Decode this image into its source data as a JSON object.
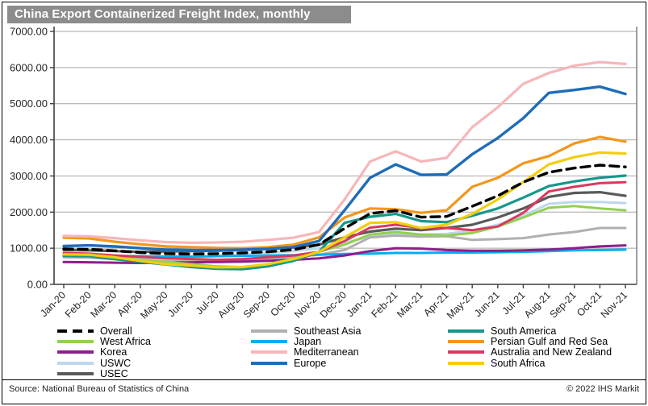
{
  "title": "China Export Containerized Freight Index, monthly",
  "footer": {
    "source": "Source: National Bureau of Statistics of China",
    "copyright": "© 2022 IHS Markit"
  },
  "colors": {
    "title_bar_bg": "#8c8c8c",
    "title_text": "#ffffff",
    "gridline": "#a6a6a6",
    "axis": "#3f3f3f",
    "tick_label": "#262626"
  },
  "chart_data": {
    "type": "line",
    "title": "China Export Containerized Freight Index, monthly",
    "xlabel": "",
    "ylabel": "",
    "ylim": [
      0,
      7000
    ],
    "y_tick_step": 1000,
    "y_tick_decimals": 2,
    "grid": true,
    "legend_position": "bottom",
    "x": [
      "Jan-20",
      "Feb-20",
      "Mar-20",
      "Apr-20",
      "May-20",
      "Jun-20",
      "Jul-20",
      "Aug-20",
      "Sep-20",
      "Oct-20",
      "Nov-20",
      "Dec-20",
      "Jan-21",
      "Feb-21",
      "Mar-21",
      "Apr-21",
      "May-21",
      "Jun-21",
      "Jul-21",
      "Aug-21",
      "Sep-21",
      "Oct-21",
      "Nov-21"
    ],
    "series": [
      {
        "name": "USWC",
        "color": "#bdd7ee",
        "width": 3,
        "dash": null,
        "values": [
          780,
          770,
          750,
          720,
          730,
          750,
          780,
          820,
          870,
          920,
          1000,
          1150,
          1320,
          1400,
          1380,
          1400,
          1490,
          1650,
          1900,
          2230,
          2280,
          2280,
          2250
        ]
      },
      {
        "name": "Southeast Asia",
        "color": "#b0b0b0",
        "width": 3,
        "dash": null,
        "values": [
          750,
          740,
          700,
          660,
          640,
          630,
          640,
          660,
          700,
          750,
          820,
          950,
          1300,
          1350,
          1320,
          1330,
          1230,
          1250,
          1280,
          1380,
          1450,
          1560,
          1560
        ]
      },
      {
        "name": "Japan",
        "color": "#00b0f0",
        "width": 3,
        "dash": null,
        "values": [
          800,
          800,
          790,
          780,
          770,
          770,
          780,
          790,
          800,
          810,
          820,
          840,
          850,
          870,
          870,
          880,
          880,
          890,
          900,
          920,
          940,
          950,
          960
        ]
      },
      {
        "name": "Korea",
        "color": "#8b1f8b",
        "width": 3,
        "dash": null,
        "values": [
          620,
          610,
          600,
          590,
          600,
          610,
          620,
          630,
          650,
          680,
          720,
          800,
          920,
          1000,
          990,
          950,
          930,
          930,
          940,
          960,
          1000,
          1050,
          1080
        ]
      },
      {
        "name": "West Africa",
        "color": "#92d050",
        "width": 3,
        "dash": null,
        "values": [
          800,
          790,
          740,
          680,
          620,
          560,
          500,
          480,
          550,
          700,
          900,
          1100,
          1380,
          1450,
          1380,
          1350,
          1420,
          1600,
          1850,
          2120,
          2170,
          2100,
          2050
        ]
      },
      {
        "name": "USEC",
        "color": "#595959",
        "width": 3.2,
        "dash": null,
        "values": [
          950,
          940,
          920,
          900,
          910,
          920,
          930,
          950,
          980,
          1020,
          1100,
          1300,
          1460,
          1540,
          1500,
          1560,
          1650,
          1850,
          2100,
          2420,
          2530,
          2550,
          2450
        ]
      },
      {
        "name": "Australia and New Zealand",
        "color": "#d9395f",
        "width": 3,
        "dash": null,
        "values": [
          870,
          850,
          800,
          760,
          720,
          700,
          680,
          700,
          750,
          800,
          900,
          1200,
          1570,
          1650,
          1560,
          1560,
          1500,
          1600,
          1980,
          2570,
          2700,
          2800,
          2830
        ]
      },
      {
        "name": "South America",
        "color": "#16978c",
        "width": 3.2,
        "dash": null,
        "values": [
          790,
          780,
          700,
          620,
          550,
          480,
          430,
          420,
          500,
          650,
          900,
          1700,
          1870,
          1950,
          1750,
          1720,
          1900,
          2100,
          2400,
          2720,
          2850,
          2950,
          3010
        ]
      },
      {
        "name": "South Africa",
        "color": "#f2ce0d",
        "width": 3.2,
        "dash": null,
        "values": [
          830,
          820,
          750,
          650,
          560,
          520,
          470,
          480,
          560,
          700,
          900,
          1300,
          1700,
          1720,
          1560,
          1650,
          1950,
          2350,
          2830,
          3320,
          3520,
          3650,
          3620
        ]
      },
      {
        "name": "Persian Gulf and Red Sea",
        "color": "#f2971b",
        "width": 3.2,
        "dash": null,
        "values": [
          1290,
          1270,
          1180,
          1110,
          1050,
          1030,
          1010,
          1000,
          1030,
          1100,
          1300,
          1850,
          2100,
          2080,
          1980,
          2050,
          2700,
          2950,
          3350,
          3550,
          3900,
          4080,
          3950
        ]
      },
      {
        "name": "Mediterranean",
        "color": "#f7b6b8",
        "width": 3.2,
        "dash": null,
        "values": [
          1340,
          1330,
          1280,
          1220,
          1170,
          1150,
          1160,
          1180,
          1230,
          1290,
          1450,
          2350,
          3400,
          3680,
          3400,
          3500,
          4350,
          4900,
          5550,
          5850,
          6050,
          6150,
          6100
        ]
      },
      {
        "name": "Europe",
        "color": "#1f6cb8",
        "width": 3.4,
        "dash": null,
        "values": [
          1060,
          1080,
          1050,
          1000,
          960,
          950,
          950,
          960,
          980,
          1030,
          1200,
          2050,
          2950,
          3320,
          3030,
          3040,
          3600,
          4050,
          4600,
          5300,
          5380,
          5470,
          5270
        ]
      },
      {
        "name": "Overall",
        "color": "#000000",
        "width": 3.4,
        "dash": "11 7",
        "values": [
          980,
          970,
          930,
          880,
          850,
          840,
          850,
          870,
          900,
          960,
          1100,
          1550,
          1960,
          2040,
          1860,
          1880,
          2160,
          2450,
          2830,
          3100,
          3220,
          3300,
          3250
        ]
      }
    ]
  },
  "legend": {
    "columns": [
      [
        "Overall",
        "West Africa",
        "Korea",
        "USWC",
        "USEC"
      ],
      [
        "Southeast Asia",
        "Japan",
        "Mediterranean",
        "Europe"
      ],
      [
        "South America",
        "Persian Gulf and Red Sea",
        "Australia and New Zealand",
        "South Africa"
      ]
    ]
  }
}
